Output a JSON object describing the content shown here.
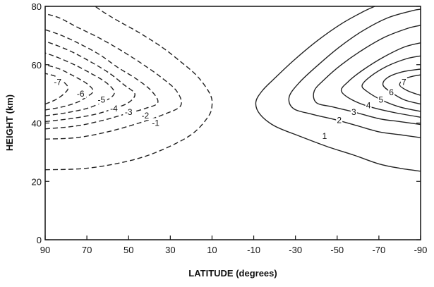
{
  "chart_data": {
    "type": "contour",
    "xlabel": "LATITUDE  (degrees)",
    "ylabel": "HEIGHT  (km)",
    "x_ticks": [
      90,
      70,
      50,
      30,
      10,
      -10,
      -30,
      -50,
      -70,
      -90
    ],
    "x_tick_labels": [
      "90",
      "70",
      "50",
      "30",
      "10",
      "-10",
      "-30",
      "-50",
      "-70",
      "-90"
    ],
    "y_ticks": [
      0,
      20,
      40,
      60,
      80
    ],
    "y_tick_labels": [
      "0",
      "20",
      "40",
      "60",
      "80"
    ],
    "xlim": [
      90,
      -90
    ],
    "ylim": [
      0,
      80
    ],
    "negative_contours": [
      {
        "label": "-1",
        "label_at": [
          37,
          40
        ],
        "points": [
          [
            90,
            24
          ],
          [
            70,
            24.5
          ],
          [
            50,
            27
          ],
          [
            35,
            30.5
          ],
          [
            20,
            36
          ],
          [
            12,
            42
          ],
          [
            10,
            46
          ],
          [
            11,
            50
          ],
          [
            17,
            56
          ],
          [
            25,
            61
          ],
          [
            34,
            66
          ],
          [
            45,
            71
          ],
          [
            55,
            75
          ],
          [
            62,
            78
          ],
          [
            66,
            80
          ]
        ]
      },
      {
        "label": "-2",
        "label_at": [
          42,
          42.5
        ],
        "points": [
          [
            90,
            34.5
          ],
          [
            75,
            35
          ],
          [
            60,
            37
          ],
          [
            45,
            40
          ],
          [
            33,
            43
          ],
          [
            25,
            46
          ],
          [
            27,
            51
          ],
          [
            35,
            56
          ],
          [
            45,
            61
          ],
          [
            55,
            65.5
          ],
          [
            65,
            69.5
          ],
          [
            75,
            73
          ],
          [
            83,
            76
          ],
          [
            90,
            77.5
          ]
        ]
      },
      {
        "label": "-3",
        "label_at": [
          50,
          43.8
        ],
        "points": [
          [
            90,
            38
          ],
          [
            75,
            39
          ],
          [
            62,
            41
          ],
          [
            52,
            43
          ],
          [
            42,
            45
          ],
          [
            36,
            47
          ],
          [
            39,
            51
          ],
          [
            46,
            55
          ],
          [
            55,
            59
          ],
          [
            64,
            63.5
          ],
          [
            73,
            67
          ],
          [
            82,
            70
          ],
          [
            90,
            72
          ]
        ]
      },
      {
        "label": "-4",
        "label_at": [
          57,
          45
        ],
        "points": [
          [
            90,
            40.5
          ],
          [
            78,
            41.5
          ],
          [
            66,
            43
          ],
          [
            57,
            45
          ],
          [
            50,
            47
          ],
          [
            47,
            50
          ],
          [
            52,
            53
          ],
          [
            59,
            57
          ],
          [
            67,
            60.5
          ],
          [
            76,
            64
          ],
          [
            84,
            66.5
          ],
          [
            90,
            68
          ]
        ]
      },
      {
        "label": "-5",
        "label_at": [
          63,
          48
        ],
        "points": [
          [
            90,
            42.5
          ],
          [
            80,
            43.5
          ],
          [
            70,
            45
          ],
          [
            63,
            47
          ],
          [
            58,
            49
          ],
          [
            57,
            51
          ],
          [
            61,
            54
          ],
          [
            68,
            57
          ],
          [
            76,
            60
          ],
          [
            84,
            62.5
          ],
          [
            90,
            64
          ]
        ]
      },
      {
        "label": "-6",
        "label_at": [
          73,
          50
        ],
        "points": [
          [
            90,
            44.5
          ],
          [
            82,
            45.5
          ],
          [
            75,
            47
          ],
          [
            70,
            49
          ],
          [
            67,
            51
          ],
          [
            70,
            53.5
          ],
          [
            76,
            56
          ],
          [
            83,
            58.5
          ],
          [
            90,
            60
          ]
        ]
      },
      {
        "label": "-7",
        "label_at": [
          84,
          54
        ],
        "points": [
          [
            90,
            46.5
          ],
          [
            85,
            48
          ],
          [
            81,
            50
          ],
          [
            79,
            52
          ],
          [
            81,
            54
          ],
          [
            85,
            56
          ],
          [
            90,
            57
          ]
        ]
      }
    ],
    "positive_contours": [
      {
        "label": "1",
        "label_at": [
          -44,
          35.5
        ],
        "points": [
          [
            -90,
            23.5
          ],
          [
            -80,
            24.5
          ],
          [
            -70,
            26
          ],
          [
            -58,
            29
          ],
          [
            -45,
            32
          ],
          [
            -32,
            35.5
          ],
          [
            -20,
            39
          ],
          [
            -13,
            43
          ],
          [
            -11,
            47
          ],
          [
            -14,
            51
          ],
          [
            -21,
            56
          ],
          [
            -30,
            62
          ],
          [
            -41,
            68.5
          ],
          [
            -52,
            74
          ],
          [
            -62,
            78
          ],
          [
            -68,
            80
          ]
        ]
      },
      {
        "label": "2",
        "label_at": [
          -51,
          41
        ],
        "points": [
          [
            -90,
            35
          ],
          [
            -80,
            36
          ],
          [
            -70,
            37
          ],
          [
            -60,
            39
          ],
          [
            -50,
            41
          ],
          [
            -38,
            43
          ],
          [
            -29,
            45
          ],
          [
            -27,
            49
          ],
          [
            -32,
            54
          ],
          [
            -41,
            60
          ],
          [
            -51,
            66
          ],
          [
            -62,
            71.5
          ],
          [
            -74,
            76
          ],
          [
            -86,
            78.5
          ],
          [
            -90,
            79
          ]
        ]
      },
      {
        "label": "3",
        "label_at": [
          -58,
          43.8
        ],
        "points": [
          [
            -90,
            39.5
          ],
          [
            -80,
            40.5
          ],
          [
            -70,
            41.5
          ],
          [
            -58,
            43.8
          ],
          [
            -48,
            45.5
          ],
          [
            -40,
            47
          ],
          [
            -39,
            51
          ],
          [
            -44,
            55
          ],
          [
            -52,
            60
          ],
          [
            -62,
            65
          ],
          [
            -73,
            69.5
          ],
          [
            -84,
            72.5
          ],
          [
            -90,
            73.5
          ]
        ]
      },
      {
        "label": "4",
        "label_at": [
          -65,
          46
        ],
        "points": [
          [
            -90,
            42
          ],
          [
            -78,
            43.5
          ],
          [
            -66,
            45.5
          ],
          [
            -57,
            48
          ],
          [
            -52,
            51
          ],
          [
            -55,
            54
          ],
          [
            -62,
            58
          ],
          [
            -72,
            62.5
          ],
          [
            -82,
            66
          ],
          [
            -90,
            67.5
          ]
        ]
      },
      {
        "label": "5",
        "label_at": [
          -71,
          48
        ],
        "points": [
          [
            -90,
            44
          ],
          [
            -80,
            45.5
          ],
          [
            -71,
            48
          ],
          [
            -64,
            51
          ],
          [
            -62,
            53
          ],
          [
            -66,
            56
          ],
          [
            -74,
            59.5
          ],
          [
            -83,
            62
          ],
          [
            -90,
            63
          ]
        ]
      },
      {
        "label": "6",
        "label_at": [
          -76,
          50.5
        ],
        "points": [
          [
            -90,
            46.5
          ],
          [
            -82,
            48
          ],
          [
            -76,
            50.5
          ],
          [
            -72,
            53
          ],
          [
            -74,
            55.5
          ],
          [
            -81,
            57.5
          ],
          [
            -90,
            58.5
          ]
        ]
      },
      {
        "label": "7",
        "label_at": [
          -82,
          54
        ],
        "points": [
          [
            -90,
            49.5
          ],
          [
            -84,
            51
          ],
          [
            -80,
            53
          ],
          [
            -82,
            55
          ],
          [
            -86,
            56
          ],
          [
            -90,
            56.5
          ]
        ]
      }
    ]
  }
}
